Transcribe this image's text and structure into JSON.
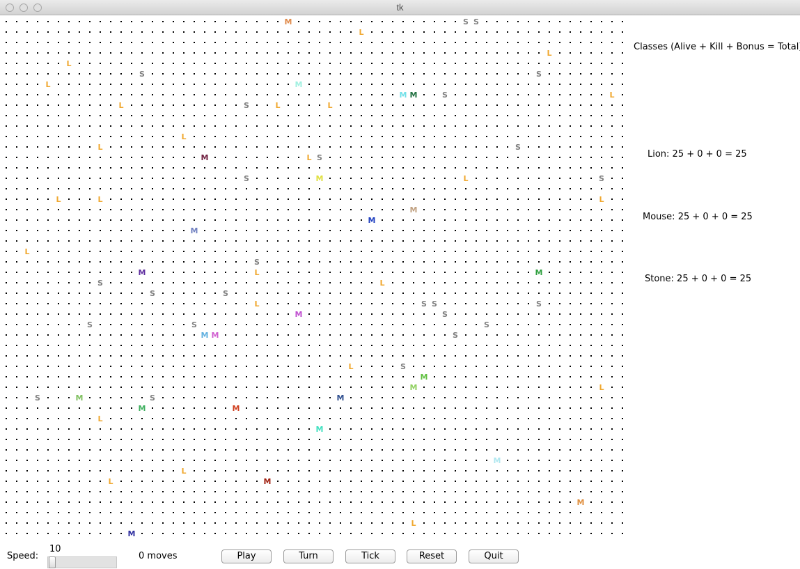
{
  "window": {
    "title": "tk"
  },
  "colors": {
    "lion": "#f0a830",
    "stone": "#808080",
    "dot": "#000000"
  },
  "info": {
    "header": "Classes (Alive + Kill + Bonus = Total):",
    "lion": "Lion: 25 + 0 + 0 = 25",
    "mouse": "Mouse: 25 + 0 + 0 = 25",
    "stone": "Stone: 25 + 0 + 0 = 25"
  },
  "controls": {
    "speed_label": "Speed:",
    "speed_value": "10",
    "moves_text": "0 moves",
    "play_label": "Play",
    "turn_label": "Turn",
    "tick_label": "Tick",
    "reset_label": "Reset",
    "quit_label": "Quit"
  },
  "grid": {
    "cols": 60,
    "rows": 50,
    "critters": [
      {
        "c": 27,
        "r": 0,
        "ch": "M",
        "col": "#e08a4a"
      },
      {
        "c": 44,
        "r": 0,
        "ch": "S",
        "col": "#808080"
      },
      {
        "c": 45,
        "r": 0,
        "ch": "S",
        "col": "#808080"
      },
      {
        "c": 34,
        "r": 1,
        "ch": "L",
        "col": "#f0a830"
      },
      {
        "c": 52,
        "r": 3,
        "ch": "L",
        "col": "#f0a830"
      },
      {
        "c": 6,
        "r": 4,
        "ch": "L",
        "col": "#f0a830"
      },
      {
        "c": 13,
        "r": 5,
        "ch": "S",
        "col": "#808080"
      },
      {
        "c": 51,
        "r": 5,
        "ch": "S",
        "col": "#808080"
      },
      {
        "c": 4,
        "r": 6,
        "ch": "L",
        "col": "#f0a830"
      },
      {
        "c": 28,
        "r": 6,
        "ch": "M",
        "col": "#a0f0e0"
      },
      {
        "c": 38,
        "r": 7,
        "ch": "M",
        "col": "#70e0e8"
      },
      {
        "c": 39,
        "r": 7,
        "ch": "M",
        "col": "#207040"
      },
      {
        "c": 42,
        "r": 7,
        "ch": "S",
        "col": "#808080"
      },
      {
        "c": 58,
        "r": 7,
        "ch": "L",
        "col": "#f0a830"
      },
      {
        "c": 11,
        "r": 8,
        "ch": "L",
        "col": "#f0a830"
      },
      {
        "c": 23,
        "r": 8,
        "ch": "S",
        "col": "#808080"
      },
      {
        "c": 26,
        "r": 8,
        "ch": "L",
        "col": "#f0a830"
      },
      {
        "c": 31,
        "r": 8,
        "ch": "L",
        "col": "#f0a830"
      },
      {
        "c": 17,
        "r": 11,
        "ch": "L",
        "col": "#f0a830"
      },
      {
        "c": 9,
        "r": 12,
        "ch": "L",
        "col": "#f0a830"
      },
      {
        "c": 49,
        "r": 12,
        "ch": "S",
        "col": "#808080"
      },
      {
        "c": 19,
        "r": 13,
        "ch": "M",
        "col": "#702040"
      },
      {
        "c": 29,
        "r": 13,
        "ch": "L",
        "col": "#f0a830"
      },
      {
        "c": 30,
        "r": 13,
        "ch": "S",
        "col": "#808080"
      },
      {
        "c": 23,
        "r": 15,
        "ch": "S",
        "col": "#808080"
      },
      {
        "c": 30,
        "r": 15,
        "ch": "M",
        "col": "#e0e040"
      },
      {
        "c": 44,
        "r": 15,
        "ch": "L",
        "col": "#f0a830"
      },
      {
        "c": 57,
        "r": 15,
        "ch": "S",
        "col": "#808080"
      },
      {
        "c": 5,
        "r": 17,
        "ch": "L",
        "col": "#f0a830"
      },
      {
        "c": 9,
        "r": 17,
        "ch": "L",
        "col": "#f0a830"
      },
      {
        "c": 57,
        "r": 17,
        "ch": "L",
        "col": "#f0a830"
      },
      {
        "c": 39,
        "r": 18,
        "ch": "M",
        "col": "#c0a080"
      },
      {
        "c": 35,
        "r": 19,
        "ch": "M",
        "col": "#2040c0"
      },
      {
        "c": 18,
        "r": 20,
        "ch": "M",
        "col": "#7080c0"
      },
      {
        "c": 2,
        "r": 22,
        "ch": "L",
        "col": "#f0a830"
      },
      {
        "c": 24,
        "r": 23,
        "ch": "S",
        "col": "#808080"
      },
      {
        "c": 13,
        "r": 24,
        "ch": "M",
        "col": "#6030a0"
      },
      {
        "c": 24,
        "r": 24,
        "ch": "L",
        "col": "#f0a830"
      },
      {
        "c": 51,
        "r": 24,
        "ch": "M",
        "col": "#30a040"
      },
      {
        "c": 9,
        "r": 25,
        "ch": "S",
        "col": "#808080"
      },
      {
        "c": 36,
        "r": 25,
        "ch": "L",
        "col": "#f0a830"
      },
      {
        "c": 14,
        "r": 26,
        "ch": "S",
        "col": "#808080"
      },
      {
        "c": 21,
        "r": 26,
        "ch": "S",
        "col": "#808080"
      },
      {
        "c": 24,
        "r": 27,
        "ch": "L",
        "col": "#f0a830"
      },
      {
        "c": 40,
        "r": 27,
        "ch": "S",
        "col": "#808080"
      },
      {
        "c": 41,
        "r": 27,
        "ch": "S",
        "col": "#808080"
      },
      {
        "c": 51,
        "r": 27,
        "ch": "S",
        "col": "#808080"
      },
      {
        "c": 28,
        "r": 28,
        "ch": "M",
        "col": "#c050d0"
      },
      {
        "c": 42,
        "r": 28,
        "ch": "S",
        "col": "#808080"
      },
      {
        "c": 8,
        "r": 29,
        "ch": "S",
        "col": "#808080"
      },
      {
        "c": 18,
        "r": 29,
        "ch": "S",
        "col": "#808080"
      },
      {
        "c": 46,
        "r": 29,
        "ch": "S",
        "col": "#808080"
      },
      {
        "c": 19,
        "r": 30,
        "ch": "M",
        "col": "#60b0e0"
      },
      {
        "c": 20,
        "r": 30,
        "ch": "M",
        "col": "#d060d0"
      },
      {
        "c": 43,
        "r": 30,
        "ch": "S",
        "col": "#808080"
      },
      {
        "c": 33,
        "r": 33,
        "ch": "L",
        "col": "#f0a830"
      },
      {
        "c": 38,
        "r": 33,
        "ch": "S",
        "col": "#808080"
      },
      {
        "c": 40,
        "r": 34,
        "ch": "M",
        "col": "#60c040"
      },
      {
        "c": 39,
        "r": 35,
        "ch": "M",
        "col": "#90d060"
      },
      {
        "c": 57,
        "r": 35,
        "ch": "L",
        "col": "#f0a830"
      },
      {
        "c": 3,
        "r": 36,
        "ch": "S",
        "col": "#808080"
      },
      {
        "c": 7,
        "r": 36,
        "ch": "M",
        "col": "#80c060"
      },
      {
        "c": 14,
        "r": 36,
        "ch": "S",
        "col": "#808080"
      },
      {
        "c": 32,
        "r": 36,
        "ch": "M",
        "col": "#305090"
      },
      {
        "c": 13,
        "r": 37,
        "ch": "M",
        "col": "#40b060"
      },
      {
        "c": 22,
        "r": 37,
        "ch": "M",
        "col": "#d04020"
      },
      {
        "c": 9,
        "r": 38,
        "ch": "L",
        "col": "#f0a830"
      },
      {
        "c": 30,
        "r": 39,
        "ch": "M",
        "col": "#40e0c0"
      },
      {
        "c": 47,
        "r": 42,
        "ch": "M",
        "col": "#b0e8f0"
      },
      {
        "c": 17,
        "r": 43,
        "ch": "L",
        "col": "#f0a830"
      },
      {
        "c": 10,
        "r": 44,
        "ch": "L",
        "col": "#f0a830"
      },
      {
        "c": 25,
        "r": 44,
        "ch": "M",
        "col": "#a02010"
      },
      {
        "c": 55,
        "r": 46,
        "ch": "M",
        "col": "#e09040"
      },
      {
        "c": 39,
        "r": 48,
        "ch": "L",
        "col": "#f0a830"
      },
      {
        "c": 12,
        "r": 49,
        "ch": "M",
        "col": "#3030a0"
      }
    ]
  }
}
